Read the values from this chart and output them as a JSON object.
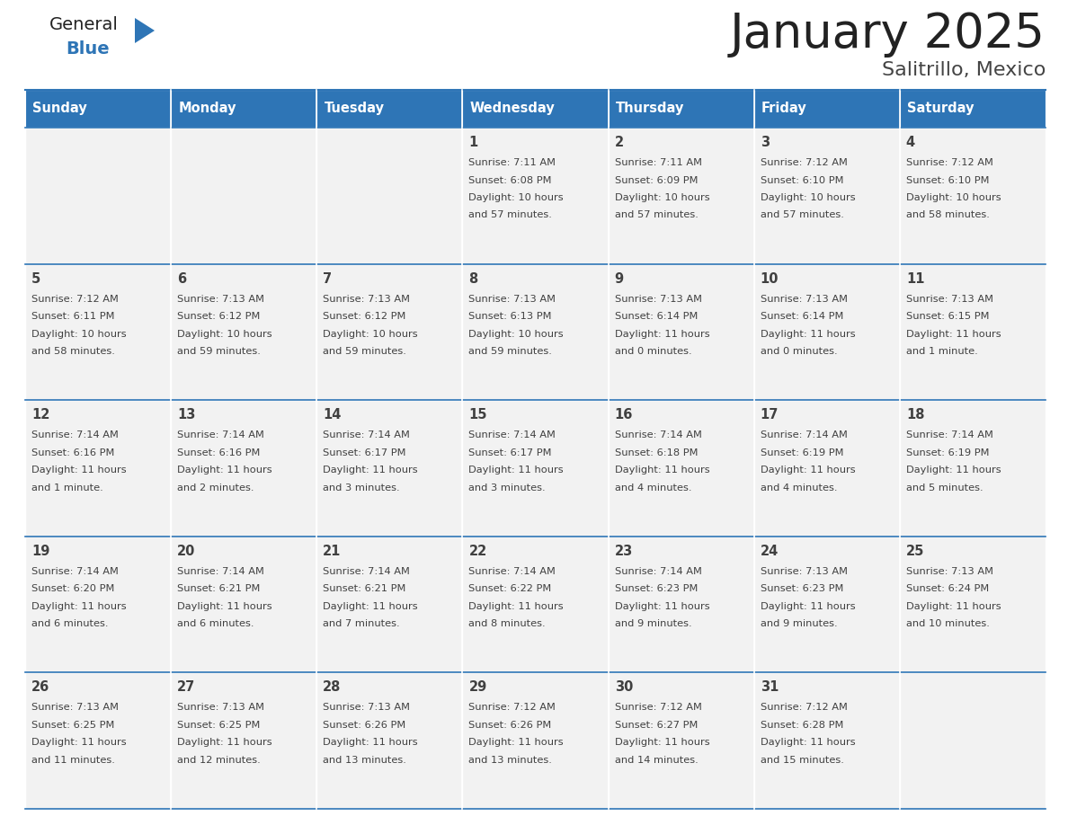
{
  "title": "January 2025",
  "subtitle": "Salitrillo, Mexico",
  "days_of_week": [
    "Sunday",
    "Monday",
    "Tuesday",
    "Wednesday",
    "Thursday",
    "Friday",
    "Saturday"
  ],
  "header_bg": "#2E75B6",
  "header_text": "#FFFFFF",
  "cell_bg_light": "#F2F2F2",
  "text_color": "#404040",
  "line_color": "#2E75B6",
  "logo_general_color": "#222222",
  "logo_blue_color": "#2E75B6",
  "logo_triangle_color": "#2E75B6",
  "calendar_data": [
    [
      {
        "day": 0,
        "sunrise": "",
        "sunset": "",
        "daylight": ""
      },
      {
        "day": 0,
        "sunrise": "",
        "sunset": "",
        "daylight": ""
      },
      {
        "day": 0,
        "sunrise": "",
        "sunset": "",
        "daylight": ""
      },
      {
        "day": 1,
        "sunrise": "7:11 AM",
        "sunset": "6:08 PM",
        "daylight": "10 hours and 57 minutes."
      },
      {
        "day": 2,
        "sunrise": "7:11 AM",
        "sunset": "6:09 PM",
        "daylight": "10 hours and 57 minutes."
      },
      {
        "day": 3,
        "sunrise": "7:12 AM",
        "sunset": "6:10 PM",
        "daylight": "10 hours and 57 minutes."
      },
      {
        "day": 4,
        "sunrise": "7:12 AM",
        "sunset": "6:10 PM",
        "daylight": "10 hours and 58 minutes."
      }
    ],
    [
      {
        "day": 5,
        "sunrise": "7:12 AM",
        "sunset": "6:11 PM",
        "daylight": "10 hours and 58 minutes."
      },
      {
        "day": 6,
        "sunrise": "7:13 AM",
        "sunset": "6:12 PM",
        "daylight": "10 hours and 59 minutes."
      },
      {
        "day": 7,
        "sunrise": "7:13 AM",
        "sunset": "6:12 PM",
        "daylight": "10 hours and 59 minutes."
      },
      {
        "day": 8,
        "sunrise": "7:13 AM",
        "sunset": "6:13 PM",
        "daylight": "10 hours and 59 minutes."
      },
      {
        "day": 9,
        "sunrise": "7:13 AM",
        "sunset": "6:14 PM",
        "daylight": "11 hours and 0 minutes."
      },
      {
        "day": 10,
        "sunrise": "7:13 AM",
        "sunset": "6:14 PM",
        "daylight": "11 hours and 0 minutes."
      },
      {
        "day": 11,
        "sunrise": "7:13 AM",
        "sunset": "6:15 PM",
        "daylight": "11 hours and 1 minute."
      }
    ],
    [
      {
        "day": 12,
        "sunrise": "7:14 AM",
        "sunset": "6:16 PM",
        "daylight": "11 hours and 1 minute."
      },
      {
        "day": 13,
        "sunrise": "7:14 AM",
        "sunset": "6:16 PM",
        "daylight": "11 hours and 2 minutes."
      },
      {
        "day": 14,
        "sunrise": "7:14 AM",
        "sunset": "6:17 PM",
        "daylight": "11 hours and 3 minutes."
      },
      {
        "day": 15,
        "sunrise": "7:14 AM",
        "sunset": "6:17 PM",
        "daylight": "11 hours and 3 minutes."
      },
      {
        "day": 16,
        "sunrise": "7:14 AM",
        "sunset": "6:18 PM",
        "daylight": "11 hours and 4 minutes."
      },
      {
        "day": 17,
        "sunrise": "7:14 AM",
        "sunset": "6:19 PM",
        "daylight": "11 hours and 4 minutes."
      },
      {
        "day": 18,
        "sunrise": "7:14 AM",
        "sunset": "6:19 PM",
        "daylight": "11 hours and 5 minutes."
      }
    ],
    [
      {
        "day": 19,
        "sunrise": "7:14 AM",
        "sunset": "6:20 PM",
        "daylight": "11 hours and 6 minutes."
      },
      {
        "day": 20,
        "sunrise": "7:14 AM",
        "sunset": "6:21 PM",
        "daylight": "11 hours and 6 minutes."
      },
      {
        "day": 21,
        "sunrise": "7:14 AM",
        "sunset": "6:21 PM",
        "daylight": "11 hours and 7 minutes."
      },
      {
        "day": 22,
        "sunrise": "7:14 AM",
        "sunset": "6:22 PM",
        "daylight": "11 hours and 8 minutes."
      },
      {
        "day": 23,
        "sunrise": "7:14 AM",
        "sunset": "6:23 PM",
        "daylight": "11 hours and 9 minutes."
      },
      {
        "day": 24,
        "sunrise": "7:13 AM",
        "sunset": "6:23 PM",
        "daylight": "11 hours and 9 minutes."
      },
      {
        "day": 25,
        "sunrise": "7:13 AM",
        "sunset": "6:24 PM",
        "daylight": "11 hours and 10 minutes."
      }
    ],
    [
      {
        "day": 26,
        "sunrise": "7:13 AM",
        "sunset": "6:25 PM",
        "daylight": "11 hours and 11 minutes."
      },
      {
        "day": 27,
        "sunrise": "7:13 AM",
        "sunset": "6:25 PM",
        "daylight": "11 hours and 12 minutes."
      },
      {
        "day": 28,
        "sunrise": "7:13 AM",
        "sunset": "6:26 PM",
        "daylight": "11 hours and 13 minutes."
      },
      {
        "day": 29,
        "sunrise": "7:12 AM",
        "sunset": "6:26 PM",
        "daylight": "11 hours and 13 minutes."
      },
      {
        "day": 30,
        "sunrise": "7:12 AM",
        "sunset": "6:27 PM",
        "daylight": "11 hours and 14 minutes."
      },
      {
        "day": 31,
        "sunrise": "7:12 AM",
        "sunset": "6:28 PM",
        "daylight": "11 hours and 15 minutes."
      },
      {
        "day": 0,
        "sunrise": "",
        "sunset": "",
        "daylight": ""
      }
    ]
  ],
  "figsize": [
    11.88,
    9.18
  ],
  "dpi": 100
}
